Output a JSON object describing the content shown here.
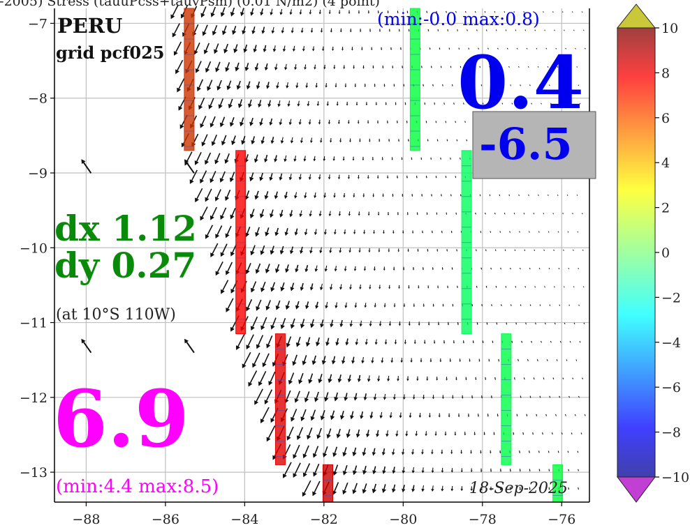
{
  "chart_data": {
    "type": "quiver",
    "title": "…05-2005)   Stress (tauuPcss+tauvPsm) (0.01 N/m2) (4 point)",
    "region_label": "PERU",
    "grid_label": "grid pcf025",
    "date_label": "18-Sep-2025",
    "xlim": [
      -88.8,
      -75.3
    ],
    "ylim": [
      -13.4,
      -6.8
    ],
    "x_ticks": [
      -88,
      -86,
      -84,
      -82,
      -80,
      -78,
      -76
    ],
    "y_ticks": [
      -7,
      -8,
      -9,
      -10,
      -11,
      -12,
      -13
    ],
    "x_tick_labels": [
      "−88",
      "−86",
      "−84",
      "−82",
      "−80",
      "−78",
      "−76"
    ],
    "y_tick_labels": [
      "−7",
      "−8",
      "−9",
      "−10",
      "−11",
      "−12",
      "−13"
    ],
    "grid": true,
    "colorbar": {
      "range": [
        -10,
        10
      ],
      "ticks": [
        "10",
        "8",
        "6",
        "4",
        "2",
        "0",
        "−2",
        "−4",
        "−6",
        "−8",
        "−10"
      ],
      "extend": "both",
      "colormap": "jet",
      "alpha": 0.75
    },
    "stats": {
      "top_value": "0.4",
      "top_range": "(min:-0.0 max:0.8)",
      "boxed_value": "-6.5",
      "dx": "dx 1.12",
      "dy": "dy 0.27",
      "at_label": "(at 10°S 110W)",
      "bottom_value": "6.9",
      "bottom_range": "(min:4.4 max:8.5)"
    },
    "colored_bars": [
      {
        "lon": -85.4,
        "lat_top": -6.8,
        "lat_bottom": -8.7,
        "value": 6.8
      },
      {
        "lon": -84.1,
        "lat_top": -8.7,
        "lat_bottom": -11.15,
        "value": 7.9
      },
      {
        "lon": -83.1,
        "lat_top": -11.15,
        "lat_bottom": -12.9,
        "value": 8.4
      },
      {
        "lon": -81.9,
        "lat_top": -12.9,
        "lat_bottom": -13.4,
        "value": 8.8
      },
      {
        "lon": -79.7,
        "lat_top": -6.8,
        "lat_bottom": -8.7,
        "value": 1.5
      },
      {
        "lon": -78.4,
        "lat_top": -8.7,
        "lat_bottom": -11.15,
        "value": 0.8
      },
      {
        "lon": -77.4,
        "lat_top": -11.15,
        "lat_bottom": -12.9,
        "value": 1.2
      },
      {
        "lon": -76.1,
        "lat_top": -12.9,
        "lat_bottom": -13.4,
        "value": 1.5
      }
    ],
    "colors": {
      "frame": "#000000",
      "grid": "#bfbfbf",
      "arrow": "#111111",
      "blue_text": "#0000ee",
      "green_text": "#0a8a0a",
      "magenta_text": "#ff00ff",
      "box": "#b5b5b5"
    }
  }
}
